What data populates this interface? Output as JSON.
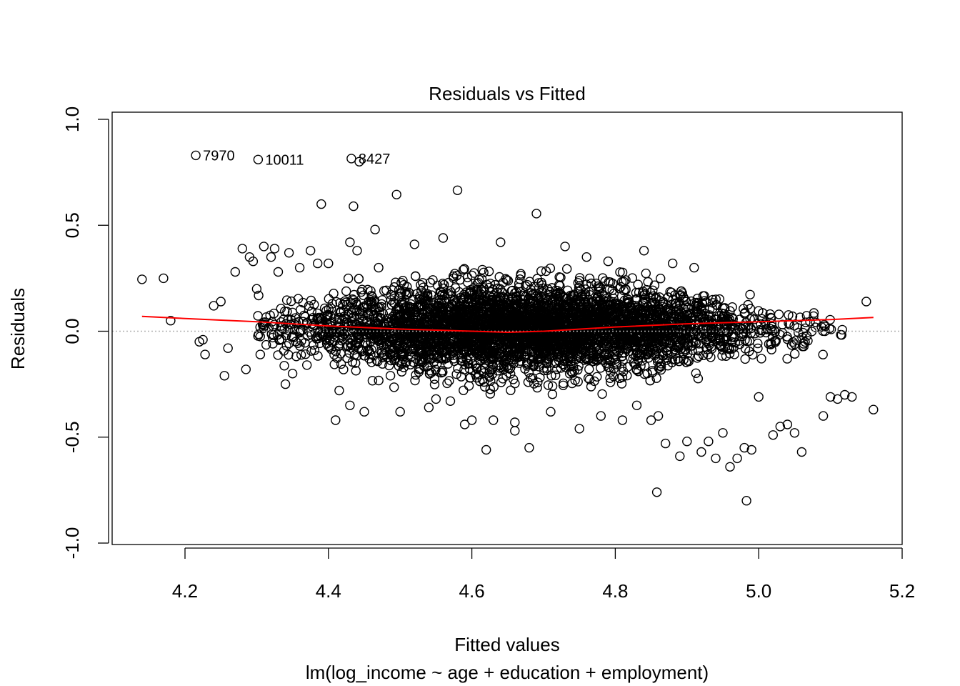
{
  "chart_data": {
    "type": "scatter",
    "title": "Residuals vs Fitted",
    "xlabel": "Fitted values",
    "subtitle": "lm(log_income ~ age + education + employment)",
    "ylabel": "Residuals",
    "xlim": [
      4.1,
      5.2
    ],
    "ylim": [
      -1.0,
      1.0
    ],
    "x_ticks": [
      "4.2",
      "4.4",
      "4.6",
      "4.8",
      "5.0",
      "5.2"
    ],
    "y_ticks": [
      "-1.0",
      "-0.5",
      "0.0",
      "0.5",
      "1.0"
    ],
    "grid": false,
    "reference_line": {
      "y": 0.0,
      "style": "dotted",
      "color": "#b0b0b0"
    },
    "smooth_color": "#ff0000",
    "smooth": {
      "x": [
        4.14,
        4.2,
        4.3,
        4.4,
        4.5,
        4.6,
        4.65,
        4.7,
        4.8,
        4.9,
        5.0,
        5.1,
        5.16
      ],
      "y": [
        0.07,
        0.06,
        0.045,
        0.025,
        0.01,
        0.0,
        -0.005,
        0.0,
        0.02,
        0.035,
        0.045,
        0.055,
        0.065
      ]
    },
    "labeled_points": [
      {
        "label": "7970",
        "x": 4.215,
        "y": 0.83
      },
      {
        "label": "10011",
        "x": 4.302,
        "y": 0.81
      },
      {
        "label": "8427",
        "x": 4.432,
        "y": 0.815
      }
    ],
    "outliers": {
      "x": [
        4.14,
        4.17,
        4.18,
        4.22,
        4.225,
        4.228,
        4.24,
        4.25,
        4.255,
        4.26,
        4.27,
        4.28,
        4.285,
        4.29,
        4.295,
        4.3,
        4.305,
        4.31,
        4.32,
        4.325,
        4.33,
        4.34,
        4.345,
        4.35,
        4.36,
        4.37,
        4.375,
        4.385,
        4.39,
        4.4,
        4.415,
        4.43,
        4.44,
        4.435,
        4.465,
        4.495,
        4.58,
        4.69,
        4.45,
        4.5,
        4.55,
        4.6,
        4.52,
        4.54,
        4.56,
        4.64,
        4.66,
        4.73,
        4.75,
        4.78,
        4.81,
        4.84,
        4.86,
        4.93,
        4.95,
        4.98,
        5.03,
        5.06,
        5.1,
        5.12,
        5.15,
        5.16,
        4.62,
        4.68,
        4.66,
        4.85,
        4.89,
        4.92,
        4.97,
        4.99,
        5.02,
        5.05,
        5.09,
        5.11,
        5.13,
        4.858,
        4.983,
        4.96,
        4.94,
        4.9,
        4.87,
        5.04,
        5.0,
        4.41,
        4.43,
        4.47,
        4.57,
        4.59,
        4.63,
        4.71,
        4.76,
        4.79,
        4.83,
        4.88,
        4.91
      ],
      "y": [
        0.245,
        0.25,
        0.05,
        -0.05,
        -0.04,
        -0.11,
        0.12,
        0.14,
        -0.21,
        -0.08,
        0.28,
        0.39,
        -0.18,
        0.35,
        0.33,
        0.2,
        -0.11,
        0.4,
        0.35,
        0.39,
        0.28,
        -0.25,
        0.37,
        -0.2,
        0.3,
        -0.16,
        0.38,
        0.32,
        0.6,
        0.32,
        -0.28,
        0.42,
        0.38,
        0.59,
        0.48,
        0.645,
        0.665,
        0.555,
        -0.38,
        -0.38,
        -0.32,
        -0.42,
        0.41,
        -0.36,
        0.44,
        0.42,
        -0.47,
        0.4,
        -0.46,
        -0.4,
        -0.42,
        0.38,
        -0.4,
        -0.52,
        -0.48,
        -0.55,
        -0.45,
        -0.57,
        -0.31,
        -0.3,
        0.14,
        -0.37,
        -0.56,
        -0.55,
        -0.43,
        -0.42,
        -0.59,
        -0.57,
        -0.6,
        -0.56,
        -0.49,
        -0.48,
        -0.4,
        -0.32,
        -0.31,
        -0.76,
        -0.8,
        -0.64,
        -0.6,
        -0.52,
        -0.53,
        -0.44,
        -0.31,
        -0.42,
        -0.35,
        0.3,
        -0.33,
        -0.44,
        -0.42,
        -0.38,
        0.35,
        0.33,
        -0.35,
        0.32,
        0.3
      ]
    }
  }
}
